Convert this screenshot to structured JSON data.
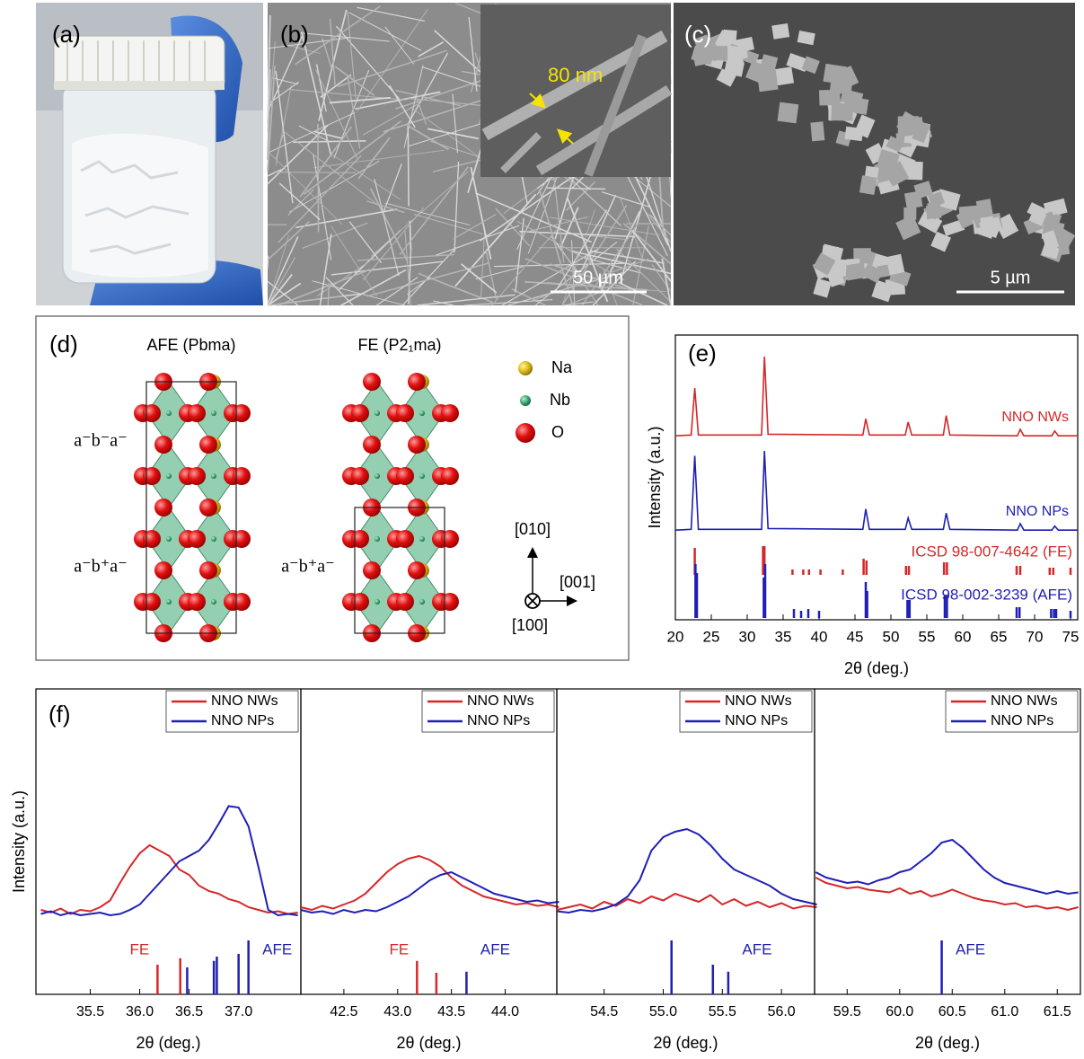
{
  "photos": {
    "a": {
      "label": "(a)"
    },
    "b": {
      "label": "(b)",
      "inset_label": "80 nm",
      "scale_bar": "50 µm"
    },
    "c": {
      "label": "(c)",
      "scale_bar": "5 µm"
    }
  },
  "diagram": {
    "label": "(d)",
    "afe_title": "AFE (Pbma)",
    "fe_title": "FE (P2₁ma)",
    "legend": [
      "Na",
      "Nb",
      "O"
    ],
    "tilt_afe_top": "a⁻b⁻a⁻",
    "tilt_afe_bottom": "a⁻b⁺a⁻",
    "tilt_fe": "a⁻b⁺a⁻",
    "axis_up": "[010]",
    "axis_right": "[001]",
    "axis_in": "[100]"
  },
  "chart_data": [
    {
      "type": "line",
      "panel_label": "(e)",
      "xlabel": "2θ (deg.)",
      "ylabel": "Intensity (a.u.)",
      "xlim": [
        20,
        76
      ],
      "xticks": [
        20,
        25,
        30,
        35,
        40,
        45,
        50,
        55,
        60,
        65,
        70,
        75
      ],
      "x": [
        20,
        22.2,
        22.7,
        23.2,
        32,
        32.4,
        32.9,
        46.1,
        46.5,
        47,
        52,
        52.4,
        52.9,
        57.3,
        57.7,
        58.2,
        67.6,
        68,
        68.5,
        72.4,
        72.8,
        73.3,
        76
      ],
      "series": [
        {
          "name": "NNO NWs",
          "color": "#d62728",
          "values": [
            2,
            3,
            61,
            3,
            3,
            100,
            4,
            3,
            23,
            3,
            3,
            19,
            3,
            3,
            27,
            3,
            2,
            10,
            2,
            2,
            8,
            2,
            2
          ]
        },
        {
          "name": "NNO NPs",
          "color": "#1f1fb4",
          "values": [
            2,
            3,
            94,
            3,
            3,
            100,
            4,
            3,
            28,
            3,
            3,
            17,
            3,
            3,
            23,
            3,
            2,
            10,
            2,
            2,
            7,
            2,
            2
          ]
        }
      ],
      "sticks": [
        {
          "label": "ICSD 98-007-4642 (FE)",
          "color": "#d62728",
          "x": [
            22.7,
            32.2,
            32.4,
            36.3,
            37.8,
            38.6,
            40.2,
            43.3,
            46.2,
            46.6,
            52.1,
            52.5,
            57.4,
            57.8,
            67.5,
            68,
            72.1,
            72.6,
            75
          ],
          "values": [
            30,
            32,
            32,
            6,
            6,
            6,
            6,
            6,
            18,
            16,
            10,
            10,
            14,
            14,
            10,
            10,
            8,
            8,
            8
          ]
        },
        {
          "label": "ICSD 98-002-3239 (AFE)",
          "color": "#1f1fb4",
          "x": [
            22.8,
            23,
            32.3,
            32.5,
            36.5,
            37.5,
            38.5,
            40,
            46.5,
            46.7,
            52.3,
            52.6,
            57.5,
            57.8,
            67.5,
            67.9,
            72.3,
            72.7,
            73,
            75
          ],
          "values": [
            60,
            50,
            45,
            60,
            10,
            8,
            10,
            8,
            40,
            30,
            20,
            20,
            25,
            25,
            12,
            12,
            10,
            10,
            10,
            8
          ]
        }
      ]
    },
    {
      "type": "line",
      "panel_label": "(f)",
      "xlabel": "2θ (deg.)",
      "ylabel": "Intensity (a.u.)",
      "xlim": [
        34.95,
        37.63
      ],
      "xticks": [
        35.5,
        {
          "value": 36,
          "label": "36.0"
        },
        36.5,
        {
          "value": 37,
          "label": "37.0"
        }
      ],
      "x": [
        35,
        35.1,
        35.2,
        35.3,
        35.4,
        35.5,
        35.6,
        35.7,
        35.8,
        35.9,
        36,
        36.1,
        36.2,
        36.3,
        36.4,
        36.5,
        36.6,
        36.7,
        36.8,
        36.9,
        37,
        37.1,
        37.2,
        37.3,
        37.4,
        37.5,
        37.6
      ],
      "series": [
        {
          "name": "NNO NWs",
          "color": "#d62728",
          "values": [
            18,
            16,
            19,
            15,
            18,
            17,
            20,
            25,
            38,
            50,
            60,
            66,
            62,
            58,
            48,
            44,
            36,
            32,
            30,
            26,
            24,
            20,
            18,
            16,
            17,
            15,
            16
          ]
        },
        {
          "name": "NNO NPs",
          "color": "#1f1fb4",
          "values": [
            15,
            17,
            14,
            16,
            14,
            15,
            16,
            14,
            15,
            18,
            22,
            30,
            38,
            46,
            54,
            58,
            62,
            70,
            82,
            95,
            94,
            80,
            50,
            18,
            14,
            15,
            14
          ]
        }
      ],
      "sticks": [
        {
          "label": "FE",
          "color": "#d62728",
          "x": [
            36.18,
            36.41
          ],
          "values": [
            55,
            67
          ]
        },
        {
          "label": "AFE",
          "color": "#1f1fb4",
          "x": [
            36.48,
            36.75,
            36.78,
            37,
            37.1
          ],
          "values": [
            50,
            62,
            70,
            75,
            100
          ]
        }
      ]
    },
    {
      "type": "line",
      "xlabel": "2θ (deg.)",
      "xlim": [
        42.1,
        44.48
      ],
      "xticks": [
        42.5,
        {
          "value": 43,
          "label": "43.0"
        },
        43.5,
        {
          "value": 44,
          "label": "44.0"
        }
      ],
      "x": [
        42.1,
        42.2,
        42.3,
        42.4,
        42.5,
        42.6,
        42.7,
        42.8,
        42.9,
        43,
        43.1,
        43.2,
        43.3,
        43.4,
        43.5,
        43.6,
        43.7,
        43.8,
        43.9,
        44,
        44.1,
        44.2,
        44.3,
        44.4,
        44.5
      ],
      "series": [
        {
          "name": "NNO NWs",
          "color": "#d62728",
          "values": [
            20,
            18,
            21,
            19,
            22,
            25,
            30,
            38,
            46,
            52,
            56,
            58,
            55,
            50,
            42,
            36,
            32,
            28,
            26,
            24,
            22,
            23,
            21,
            22,
            20
          ]
        },
        {
          "name": "NNO NPs",
          "color": "#1f1fb4",
          "values": [
            18,
            16,
            17,
            15,
            18,
            16,
            18,
            17,
            20,
            24,
            28,
            34,
            40,
            44,
            46,
            42,
            38,
            34,
            30,
            28,
            26,
            24,
            25,
            23,
            24
          ]
        }
      ],
      "sticks": [
        {
          "label": "FE",
          "color": "#d62728",
          "x": [
            43.18,
            43.36
          ],
          "values": [
            62,
            40
          ]
        },
        {
          "label": "AFE",
          "color": "#1f1fb4",
          "x": [
            43.64
          ],
          "values": [
            42
          ]
        }
      ]
    },
    {
      "type": "line",
      "xlabel": "2θ (deg.)",
      "xlim": [
        54.1,
        56.28
      ],
      "xticks": [
        54.5,
        {
          "value": 55,
          "label": "55.0"
        },
        55.5,
        {
          "value": 56,
          "label": "56.0"
        }
      ],
      "x": [
        54.1,
        54.2,
        54.3,
        54.4,
        54.5,
        54.6,
        54.7,
        54.8,
        54.9,
        55,
        55.1,
        55.2,
        55.3,
        55.4,
        55.5,
        55.6,
        55.7,
        55.8,
        55.9,
        56,
        56.1,
        56.2,
        56.3
      ],
      "series": [
        {
          "name": "NNO NWs",
          "color": "#d62728",
          "values": [
            18,
            20,
            22,
            19,
            24,
            21,
            26,
            23,
            28,
            25,
            30,
            27,
            24,
            29,
            22,
            26,
            21,
            24,
            20,
            23,
            19,
            21,
            20
          ]
        },
        {
          "name": "NNO NPs",
          "color": "#1f1fb4",
          "values": [
            17,
            16,
            18,
            17,
            19,
            22,
            28,
            40,
            62,
            72,
            76,
            78,
            74,
            66,
            56,
            48,
            44,
            40,
            36,
            30,
            26,
            24,
            22
          ]
        }
      ],
      "sticks": [
        {
          "label": "AFE",
          "color": "#1f1fb4",
          "x": [
            55.07,
            55.42,
            55.55
          ],
          "values": [
            100,
            55,
            42
          ]
        }
      ]
    },
    {
      "type": "line",
      "xlabel": "2θ (deg.)",
      "xlim": [
        59.19,
        61.72
      ],
      "xticks": [
        59.5,
        {
          "value": 60,
          "label": "60.0"
        },
        60.5,
        {
          "value": 61,
          "label": "61.0"
        },
        61.5
      ],
      "x": [
        59.2,
        59.3,
        59.4,
        59.5,
        59.6,
        59.7,
        59.8,
        59.9,
        60,
        60.1,
        60.2,
        60.3,
        60.4,
        60.5,
        60.6,
        60.7,
        60.8,
        60.9,
        61,
        61.1,
        61.2,
        61.3,
        61.4,
        61.5,
        61.6,
        61.7
      ],
      "series": [
        {
          "name": "NNO NWs",
          "color": "#d62728",
          "values": [
            42,
            38,
            36,
            34,
            35,
            33,
            32,
            31,
            34,
            30,
            32,
            28,
            30,
            33,
            30,
            27,
            25,
            24,
            22,
            23,
            20,
            21,
            19,
            20,
            18,
            20
          ]
        },
        {
          "name": "NNO NPs",
          "color": "#1f1fb4",
          "values": [
            46,
            42,
            40,
            38,
            39,
            37,
            40,
            42,
            46,
            48,
            54,
            60,
            68,
            70,
            64,
            56,
            48,
            42,
            38,
            36,
            34,
            32,
            30,
            32,
            30,
            31
          ]
        }
      ],
      "sticks": [
        {
          "label": "AFE",
          "color": "#1f1fb4",
          "x": [
            60.4
          ],
          "values": [
            100
          ]
        }
      ]
    }
  ]
}
